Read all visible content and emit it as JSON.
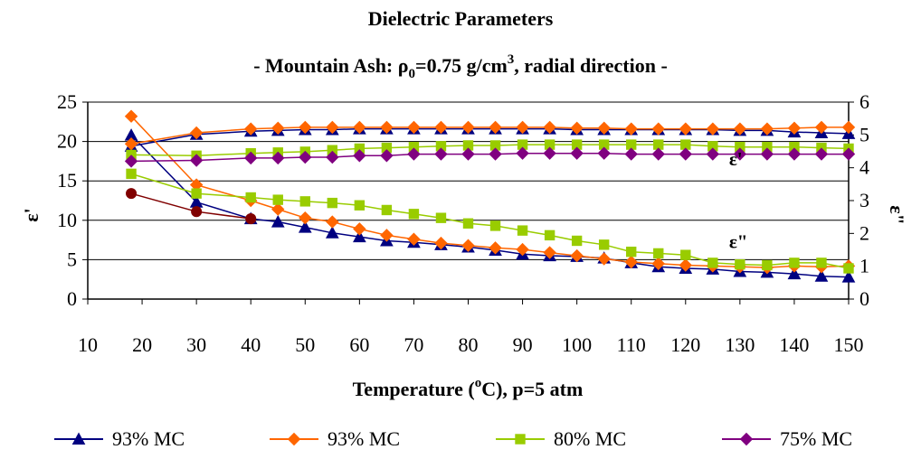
{
  "chart_data": {
    "type": "line",
    "title": "Dielectric Parameters",
    "subtitle": {
      "prefix": "- Mountain Ash: ",
      "rho": "ρ",
      "rho_sub": "0",
      "mid": "=0.75 g/cm",
      "sup": "3",
      "suffix": ", radial direction -"
    },
    "xlabel": {
      "prefix": "Temperature (",
      "sup": "o",
      "suffix": "C), p=5 atm"
    },
    "ylabel_left": "ε'",
    "ylabel_right": "ε\"",
    "xlim": [
      10,
      150
    ],
    "ylim_left": [
      0,
      25
    ],
    "ylim_right": [
      0,
      6
    ],
    "x_ticks": [
      "10",
      "20",
      "30",
      "40",
      "50",
      "60",
      "70",
      "80",
      "90",
      "100",
      "110",
      "120",
      "130",
      "140",
      "150"
    ],
    "y_ticks_left": [
      "0",
      "5",
      "10",
      "15",
      "20",
      "25"
    ],
    "y_ticks_right": [
      "0",
      "1",
      "2",
      "3",
      "4",
      "5",
      "6"
    ],
    "grid": "horizontal",
    "legend_position": "bottom",
    "annotations": [
      {
        "text": "ε'",
        "x": 128,
        "y": 17
      },
      {
        "text": "ε\"",
        "x": 128,
        "y": 6.5
      }
    ],
    "x": [
      18,
      30,
      40,
      45,
      50,
      55,
      60,
      65,
      70,
      75,
      80,
      85,
      90,
      95,
      100,
      105,
      110,
      115,
      120,
      125,
      130,
      135,
      140,
      145,
      150
    ],
    "series": [
      {
        "name": "93% MC",
        "marker": "triangle",
        "color": "#000080",
        "axis": "left",
        "quantity": "eps_real",
        "values": [
          19.4,
          20.9,
          21.3,
          21.4,
          21.5,
          21.5,
          21.6,
          21.6,
          21.6,
          21.6,
          21.6,
          21.6,
          21.6,
          21.6,
          21.5,
          21.5,
          21.5,
          21.5,
          21.5,
          21.5,
          21.4,
          21.4,
          21.2,
          21.1,
          21.0
        ]
      },
      {
        "name": "93% MC",
        "marker": "triangle",
        "color": "#000080",
        "axis": "left",
        "quantity": "eps_imag",
        "values": [
          20.8,
          12.3,
          10.2,
          9.8,
          9.1,
          8.4,
          7.9,
          7.4,
          7.2,
          6.9,
          6.6,
          6.2,
          5.7,
          5.5,
          5.4,
          5.2,
          4.6,
          4.1,
          3.9,
          3.8,
          3.5,
          3.4,
          3.2,
          2.9,
          2.8
        ]
      },
      {
        "name": "93% MC",
        "marker": "diamond",
        "color": "#FF6600",
        "axis": "left",
        "quantity": "eps_real",
        "values": [
          19.7,
          21.1,
          21.6,
          21.7,
          21.8,
          21.8,
          21.8,
          21.8,
          21.8,
          21.8,
          21.8,
          21.8,
          21.8,
          21.8,
          21.7,
          21.7,
          21.6,
          21.6,
          21.6,
          21.6,
          21.6,
          21.6,
          21.7,
          21.8,
          21.8
        ]
      },
      {
        "name": "93% MC",
        "marker": "diamond",
        "color": "#FF6600",
        "axis": "left",
        "quantity": "eps_imag",
        "values": [
          23.2,
          14.5,
          12.5,
          11.4,
          10.3,
          9.8,
          8.9,
          8.1,
          7.6,
          7.1,
          6.8,
          6.5,
          6.3,
          5.9,
          5.5,
          5.1,
          4.7,
          4.5,
          4.3,
          4.2,
          4.1,
          4.0,
          4.2,
          4.1,
          4.2
        ]
      },
      {
        "name": "80% MC",
        "marker": "square",
        "color": "#99CC00",
        "axis": "left",
        "quantity": "eps_real",
        "values": [
          18.3,
          18.2,
          18.5,
          18.6,
          18.7,
          18.9,
          19.1,
          19.2,
          19.3,
          19.4,
          19.5,
          19.5,
          19.6,
          19.6,
          19.6,
          19.6,
          19.6,
          19.6,
          19.6,
          19.4,
          19.3,
          19.3,
          19.3,
          19.2,
          19.1
        ]
      },
      {
        "name": "80% MC",
        "marker": "square",
        "color": "#99CC00",
        "axis": "left",
        "quantity": "eps_imag",
        "values": [
          15.9,
          13.4,
          12.9,
          12.6,
          12.4,
          12.2,
          11.9,
          11.3,
          10.8,
          10.3,
          9.6,
          9.3,
          8.7,
          8.1,
          7.4,
          6.9,
          6.0,
          5.8,
          5.6,
          4.6,
          4.4,
          4.3,
          4.6,
          4.6,
          3.9
        ]
      },
      {
        "name": "75% MC",
        "marker": "diamond",
        "color": "#800080",
        "axis": "left",
        "quantity": "eps_real",
        "values": [
          17.5,
          17.6,
          17.9,
          17.9,
          18.0,
          18.0,
          18.2,
          18.2,
          18.4,
          18.4,
          18.4,
          18.4,
          18.5,
          18.5,
          18.5,
          18.5,
          18.4,
          18.4,
          18.4,
          18.4,
          18.4,
          18.4,
          18.4,
          18.4,
          18.4
        ]
      },
      {
        "name": "75% MC",
        "marker": "circle",
        "color": "#800000",
        "axis": "left",
        "quantity": "eps_imag",
        "values": [
          13.4,
          11.1,
          10.2,
          null,
          null,
          null,
          null,
          null,
          null,
          null,
          null,
          null,
          null,
          null,
          null,
          null,
          null,
          null,
          null,
          null,
          null,
          null,
          null,
          null,
          null
        ]
      }
    ],
    "legend": [
      {
        "name": "93% MC",
        "marker": "triangle",
        "color": "#000080"
      },
      {
        "name": "93% MC",
        "marker": "diamond",
        "color": "#FF6600"
      },
      {
        "name": "80% MC",
        "marker": "square",
        "color": "#99CC00"
      },
      {
        "name": "75% MC",
        "marker": "diamond",
        "color": "#800080"
      }
    ]
  }
}
